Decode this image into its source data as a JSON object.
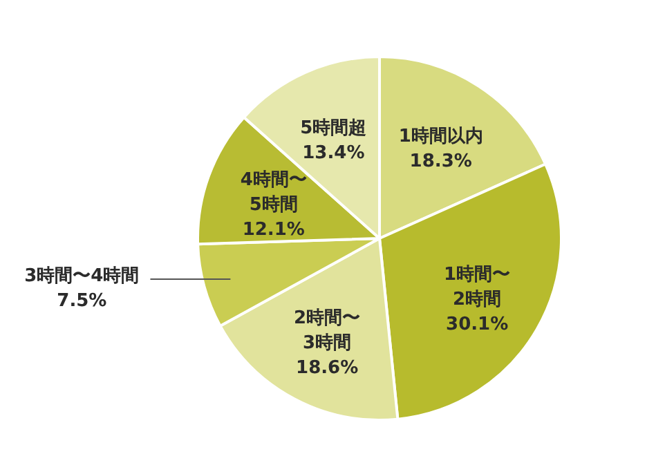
{
  "chart_data": {
    "type": "pie",
    "categories": [
      "1時間以内",
      "1時間〜2時間",
      "2時間〜3時間",
      "3時間〜4時間",
      "4時間〜5時間",
      "5時間超"
    ],
    "values": [
      18.3,
      30.1,
      18.6,
      7.5,
      12.1,
      13.4
    ],
    "value_labels": [
      "18.3%",
      "30.1%",
      "18.6%",
      "7.5%",
      "12.1%",
      "13.4%"
    ],
    "colors": [
      "#d8db80",
      "#b7bb2d",
      "#e1e39c",
      "#cacd52",
      "#b8bc33",
      "#e6e8ad"
    ]
  }
}
